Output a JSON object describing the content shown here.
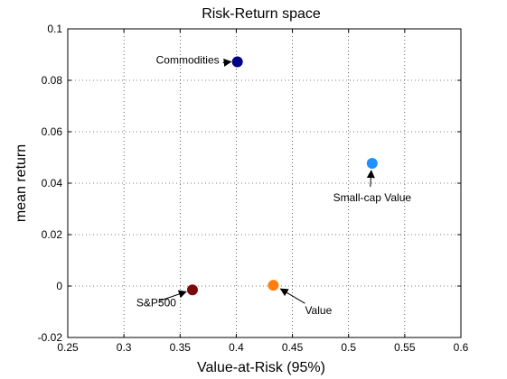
{
  "chart_data": {
    "type": "scatter",
    "title": "Risk-Return space",
    "xlabel": "Value-at-Risk (95%)",
    "ylabel": "mean return",
    "xlim": [
      0.25,
      0.6
    ],
    "ylim": [
      -0.02,
      0.1
    ],
    "xticks": [
      0.25,
      0.3,
      0.35,
      0.4,
      0.45,
      0.5,
      0.55,
      0.6
    ],
    "yticks": [
      -0.02,
      0,
      0.02,
      0.04,
      0.06,
      0.08,
      0.1
    ],
    "xtick_labels": [
      "0.25",
      "0.3",
      "0.35",
      "0.4",
      "0.45",
      "0.5",
      "0.55",
      "0.6"
    ],
    "ytick_labels": [
      "-0.02",
      "0",
      "0.02",
      "0.04",
      "0.06",
      "0.08",
      "0.1"
    ],
    "grid": true,
    "points": [
      {
        "label": "Commodities",
        "x": 0.401,
        "y": 0.0872,
        "color": "#00008b",
        "label_side": "left"
      },
      {
        "label": "Small-cap Value",
        "x": 0.521,
        "y": 0.0477,
        "color": "#1e90ff",
        "label_side": "below"
      },
      {
        "label": "S&P500",
        "x": 0.361,
        "y": -0.0015,
        "color": "#7b0a0a",
        "label_side": "below-left"
      },
      {
        "label": "Value",
        "x": 0.433,
        "y": 0.0003,
        "color": "#ff7f0e",
        "label_side": "below-right"
      }
    ]
  }
}
